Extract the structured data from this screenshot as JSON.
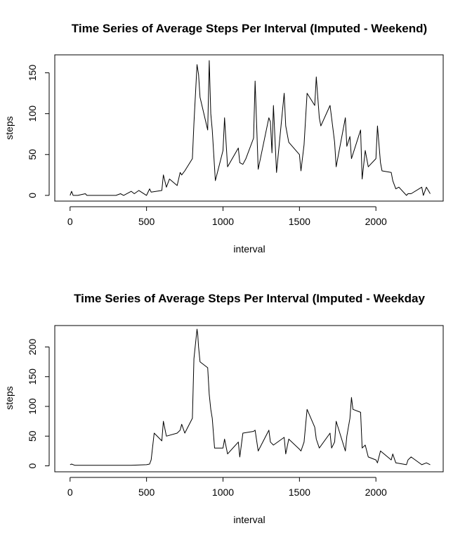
{
  "chart_data": [
    {
      "type": "line",
      "title": "Time Series of Average Steps Per Interval (Imputed - Weekend)",
      "xlabel": "interval",
      "ylabel": "steps",
      "xlim": [
        -100,
        2440
      ],
      "ylim": [
        -7,
        172
      ],
      "xticks": [
        0,
        500,
        1000,
        1500,
        2000
      ],
      "yticks": [
        0,
        50,
        100,
        150
      ],
      "grid": false,
      "x": [
        0,
        10,
        20,
        50,
        100,
        110,
        200,
        300,
        330,
        350,
        400,
        420,
        450,
        500,
        520,
        530,
        600,
        610,
        630,
        650,
        700,
        720,
        730,
        750,
        800,
        810,
        830,
        840,
        850,
        900,
        910,
        920,
        930,
        950,
        1000,
        1010,
        1030,
        1100,
        1110,
        1130,
        1150,
        1200,
        1210,
        1230,
        1300,
        1310,
        1320,
        1330,
        1350,
        1400,
        1410,
        1430,
        1500,
        1510,
        1530,
        1550,
        1600,
        1610,
        1630,
        1640,
        1700,
        1710,
        1730,
        1740,
        1800,
        1810,
        1830,
        1840,
        1900,
        1910,
        1930,
        1950,
        2000,
        2010,
        2030,
        2040,
        2100,
        2110,
        2130,
        2150,
        2200,
        2210,
        2230,
        2300,
        2310,
        2330,
        2355
      ],
      "y": [
        0,
        5,
        0,
        0,
        2,
        0,
        0,
        0,
        2,
        0,
        5,
        2,
        6,
        0,
        8,
        4,
        6,
        25,
        10,
        20,
        12,
        28,
        25,
        30,
        45,
        88,
        160,
        148,
        120,
        80,
        165,
        100,
        80,
        18,
        55,
        95,
        35,
        58,
        40,
        38,
        45,
        70,
        140,
        32,
        95,
        90,
        52,
        110,
        28,
        125,
        85,
        65,
        50,
        30,
        62,
        125,
        110,
        145,
        95,
        85,
        110,
        95,
        65,
        35,
        95,
        60,
        72,
        45,
        80,
        20,
        55,
        35,
        45,
        85,
        40,
        30,
        28,
        18,
        8,
        10,
        0,
        2,
        2,
        10,
        0,
        10,
        2
      ],
      "series": [
        {
          "values_ref": "y"
        }
      ]
    },
    {
      "type": "line",
      "title": "Time Series of Average Steps Per Interval (Imputed - Weekday",
      "xlabel": "interval",
      "ylabel": "steps",
      "xlim": [
        -100,
        2440
      ],
      "ylim": [
        -10,
        236
      ],
      "xticks": [
        0,
        500,
        1000,
        1500,
        2000
      ],
      "yticks": [
        0,
        50,
        100,
        150,
        200
      ],
      "grid": false,
      "x": [
        0,
        10,
        30,
        100,
        200,
        300,
        400,
        500,
        520,
        530,
        550,
        600,
        610,
        630,
        700,
        720,
        730,
        750,
        800,
        810,
        830,
        835,
        840,
        850,
        900,
        910,
        920,
        930,
        945,
        1000,
        1010,
        1030,
        1100,
        1110,
        1130,
        1200,
        1210,
        1230,
        1300,
        1310,
        1330,
        1400,
        1410,
        1430,
        1500,
        1510,
        1530,
        1550,
        1600,
        1610,
        1630,
        1700,
        1710,
        1730,
        1740,
        1800,
        1810,
        1830,
        1840,
        1850,
        1900,
        1910,
        1930,
        1950,
        2000,
        2010,
        2030,
        2100,
        2110,
        2130,
        2200,
        2210,
        2230,
        2300,
        2330,
        2355
      ],
      "y": [
        2,
        3,
        1,
        1,
        1,
        1,
        1,
        2,
        3,
        10,
        55,
        42,
        75,
        50,
        55,
        60,
        70,
        55,
        80,
        180,
        230,
        220,
        200,
        175,
        165,
        120,
        95,
        80,
        30,
        30,
        45,
        20,
        40,
        15,
        55,
        58,
        60,
        25,
        60,
        40,
        35,
        48,
        20,
        45,
        28,
        25,
        40,
        95,
        65,
        45,
        30,
        55,
        30,
        40,
        75,
        25,
        50,
        80,
        115,
        95,
        90,
        30,
        35,
        15,
        10,
        5,
        25,
        10,
        20,
        5,
        2,
        10,
        15,
        2,
        5,
        2
      ],
      "series": [
        {
          "values_ref": "y"
        }
      ]
    }
  ]
}
